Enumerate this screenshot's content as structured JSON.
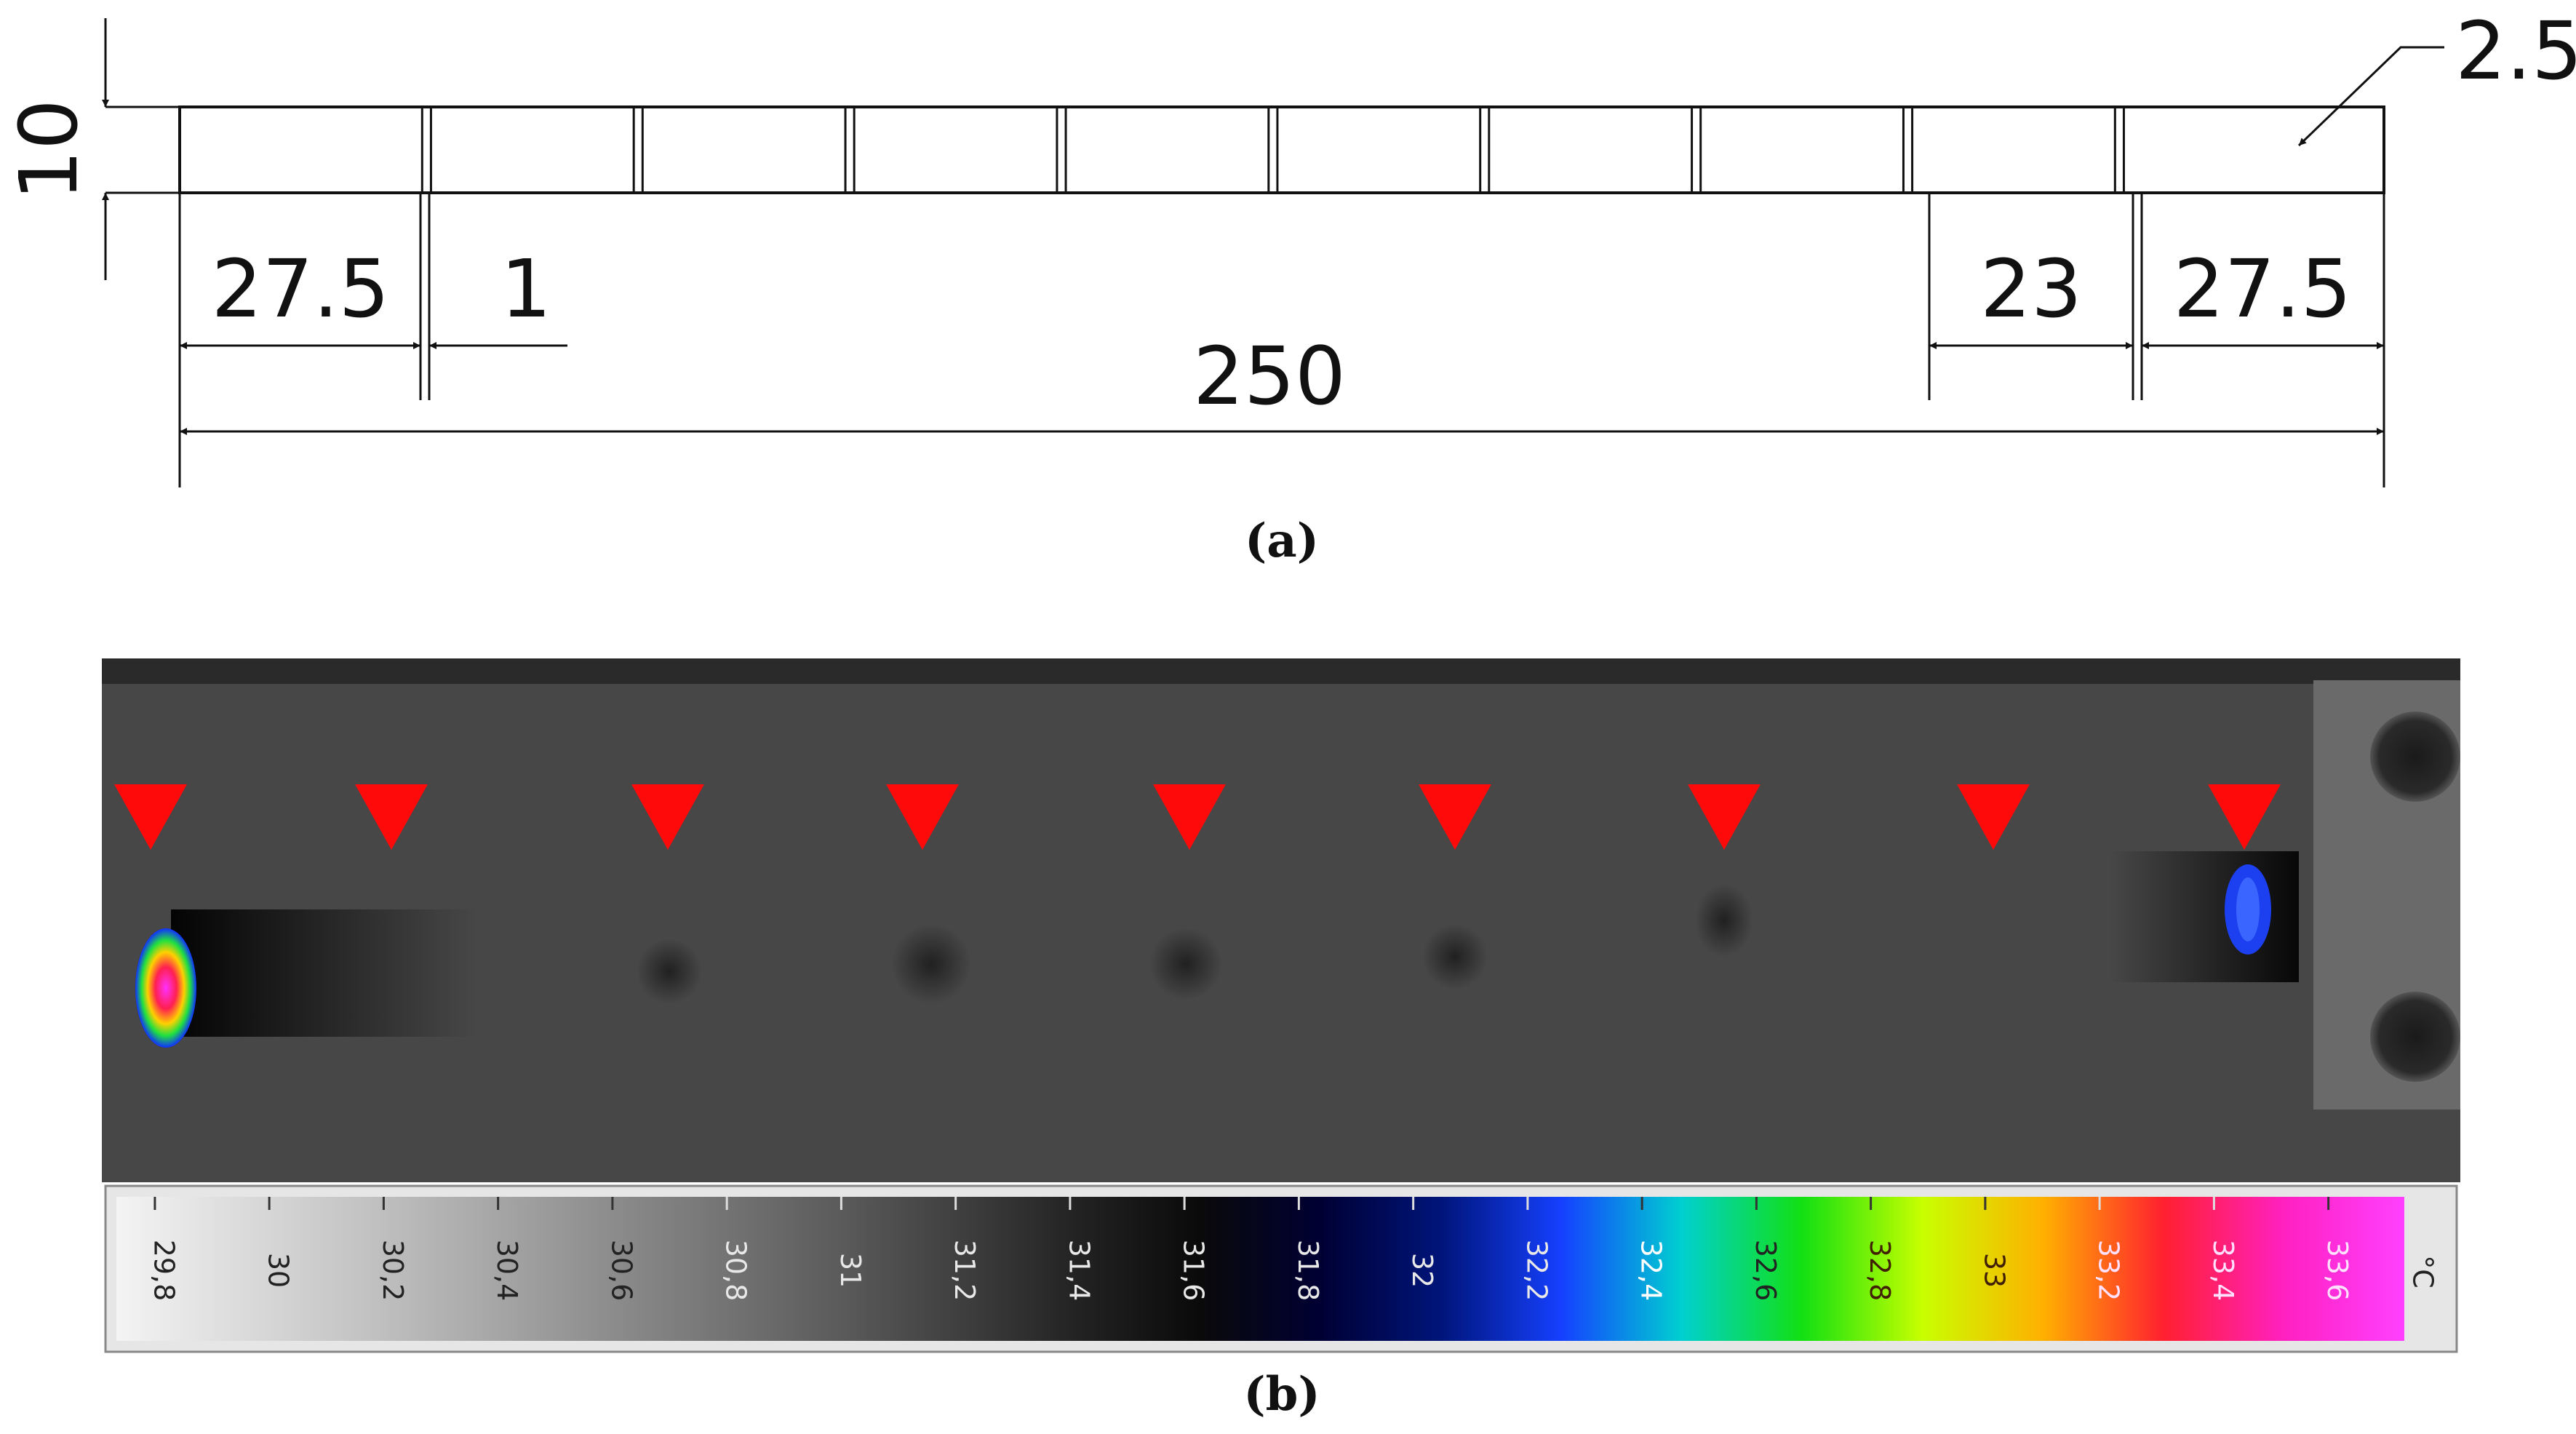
{
  "panel_a": {
    "caption": "(a)",
    "dimensions": {
      "height": "10",
      "thickness": "2.5",
      "left_end": "27.5",
      "gap": "1",
      "segment": "23",
      "right_end": "27.5",
      "total": "250"
    },
    "cell_count": 10
  },
  "panel_b": {
    "caption": "(b)",
    "arrow_count": 9,
    "arrow_color": "#ff0a0a",
    "colorbar": {
      "unit": "°C",
      "ticks": [
        "29,8",
        "30",
        "30,2",
        "30,4",
        "30,6",
        "30,8",
        "31",
        "31,2",
        "31,4",
        "31,6",
        "31,8",
        "32",
        "32,2",
        "32,4",
        "32,6",
        "32,8",
        "33",
        "33,2",
        "33,4",
        "33,6"
      ],
      "colors": [
        "#f4f4f4",
        "#dcdcdc",
        "#c4c4c4",
        "#aaaaaa",
        "#8f8f8f",
        "#757575",
        "#5b5b5b",
        "#3f3f3f",
        "#222222",
        "#0a0a0a",
        "#000033",
        "#00157a",
        "#1540ff",
        "#00d0d0",
        "#12e012",
        "#c8ff00",
        "#ffb000",
        "#ff2030",
        "#ff20c0",
        "#ff40ff"
      ]
    }
  }
}
